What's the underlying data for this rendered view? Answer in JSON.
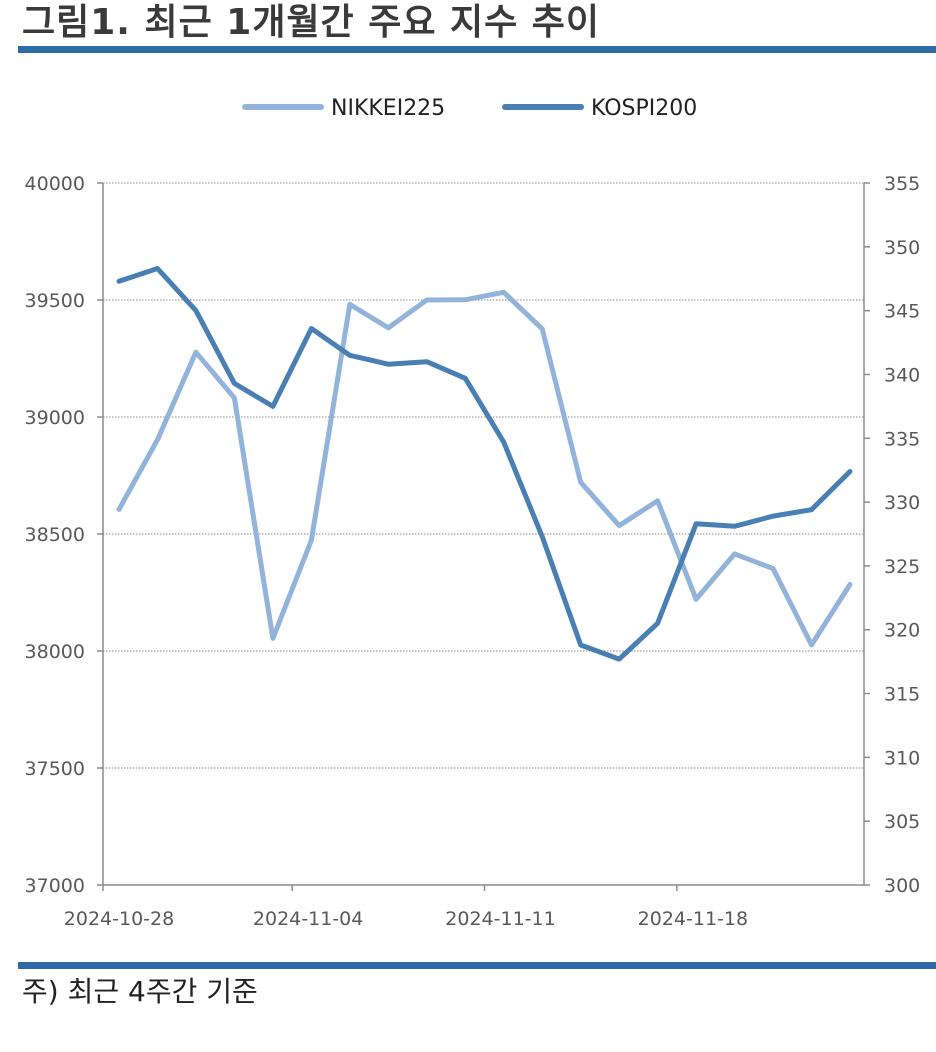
{
  "header": {
    "title": "그림1. 최근 1개월간 주요 지수 추이"
  },
  "footnote": "주) 최근 4주간 기준",
  "chart_data": {
    "type": "line",
    "x": [
      "2024-10-28",
      "2024-10-29",
      "2024-10-30",
      "2024-10-31",
      "2024-11-01",
      "2024-11-04",
      "2024-11-05",
      "2024-11-06",
      "2024-11-07",
      "2024-11-08",
      "2024-11-11",
      "2024-11-12",
      "2024-11-13",
      "2024-11-14",
      "2024-11-15",
      "2024-11-18",
      "2024-11-19",
      "2024-11-20",
      "2024-11-21",
      "2024-11-22"
    ],
    "x_tick_labels": [
      "2024-10-28",
      "2024-11-04",
      "2024-11-11",
      "2024-11-18"
    ],
    "series": [
      {
        "name": "NIKKEI225",
        "axis": "left",
        "color": "#92b4da",
        "values": [
          38605,
          38903,
          39277,
          39081,
          38054,
          38474,
          39481,
          39381,
          39500,
          39501,
          39533,
          39377,
          38721,
          38536,
          38642,
          38221,
          38415,
          38352,
          38026,
          38284
        ]
      },
      {
        "name": "KOSPI200",
        "axis": "right",
        "color": "#4a7fb4",
        "values": [
          347.3,
          348.3,
          345.0,
          339.3,
          337.5,
          343.6,
          341.5,
          340.8,
          341.0,
          339.7,
          334.7,
          327.3,
          318.8,
          317.7,
          320.5,
          328.3,
          328.1,
          328.9,
          329.4,
          332.4
        ]
      }
    ],
    "y_left": {
      "min": 37000,
      "max": 40000,
      "step": 500,
      "ticks": [
        "37000",
        "37500",
        "38000",
        "38500",
        "39000",
        "39500",
        "40000"
      ]
    },
    "y_right": {
      "min": 300,
      "max": 355,
      "step": 5,
      "ticks": [
        "300",
        "305",
        "310",
        "315",
        "320",
        "325",
        "330",
        "335",
        "340",
        "345",
        "350",
        "355"
      ]
    },
    "grid": true,
    "legend_position": "top-center"
  }
}
